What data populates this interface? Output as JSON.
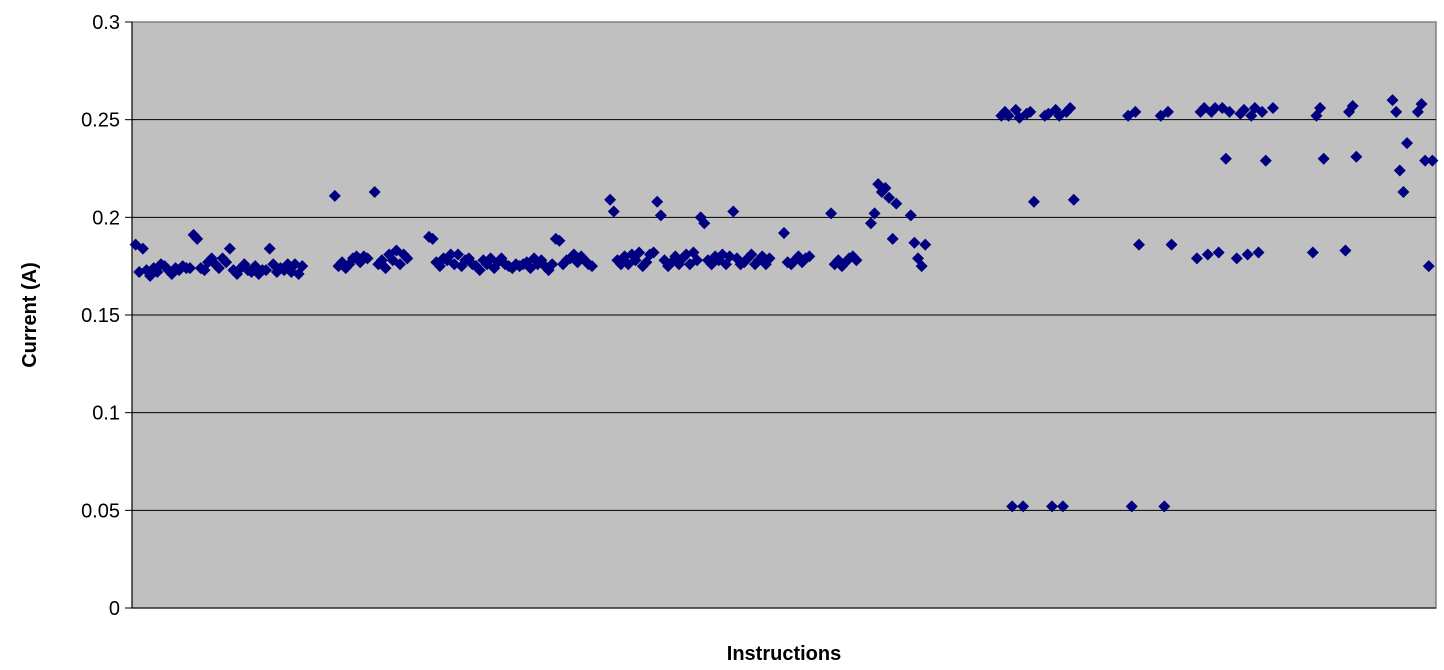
{
  "chart_data": {
    "type": "scatter",
    "title": "",
    "xlabel": "Instructions",
    "ylabel": "Current (A)",
    "ylim": [
      0,
      0.3
    ],
    "xlim": [
      0,
      360
    ],
    "x_ticks_visible": false,
    "y_ticks": [
      "0",
      "0.05",
      "0.1",
      "0.15",
      "0.2",
      "0.25",
      "0.3"
    ],
    "grid": "horizontal",
    "legend": "none",
    "colors": {
      "plot_area": "#c0c0c0",
      "marker": "#000080",
      "gridline": "#000000",
      "page": "#ffffff"
    },
    "marker": "diamond",
    "series": [
      {
        "points": [
          [
            1,
            0.186
          ],
          [
            2,
            0.172
          ],
          [
            3,
            0.184
          ],
          [
            4,
            0.173
          ],
          [
            5,
            0.17
          ],
          [
            6,
            0.174
          ],
          [
            7,
            0.172
          ],
          [
            8,
            0.176
          ],
          [
            9,
            0.175
          ],
          [
            10,
            0.173
          ],
          [
            11,
            0.171
          ],
          [
            12,
            0.174
          ],
          [
            13,
            0.173
          ],
          [
            14,
            0.175
          ],
          [
            15,
            0.174
          ],
          [
            16,
            0.174
          ],
          [
            17,
            0.191
          ],
          [
            18,
            0.189
          ],
          [
            19,
            0.174
          ],
          [
            20,
            0.173
          ],
          [
            21,
            0.177
          ],
          [
            22,
            0.179
          ],
          [
            23,
            0.176
          ],
          [
            24,
            0.174
          ],
          [
            25,
            0.179
          ],
          [
            26,
            0.177
          ],
          [
            27,
            0.184
          ],
          [
            28,
            0.173
          ],
          [
            29,
            0.171
          ],
          [
            30,
            0.174
          ],
          [
            31,
            0.176
          ],
          [
            32,
            0.173
          ],
          [
            33,
            0.172
          ],
          [
            34,
            0.175
          ],
          [
            35,
            0.171
          ],
          [
            36,
            0.173
          ],
          [
            37,
            0.173
          ],
          [
            38,
            0.184
          ],
          [
            39,
            0.176
          ],
          [
            40,
            0.172
          ],
          [
            41,
            0.174
          ],
          [
            42,
            0.173
          ],
          [
            43,
            0.176
          ],
          [
            44,
            0.172
          ],
          [
            45,
            0.176
          ],
          [
            46,
            0.171
          ],
          [
            47,
            0.175
          ],
          [
            56,
            0.211
          ],
          [
            57,
            0.175
          ],
          [
            58,
            0.177
          ],
          [
            59,
            0.174
          ],
          [
            60,
            0.176
          ],
          [
            61,
            0.179
          ],
          [
            62,
            0.18
          ],
          [
            63,
            0.177
          ],
          [
            64,
            0.18
          ],
          [
            65,
            0.179
          ],
          [
            67,
            0.213
          ],
          [
            68,
            0.176
          ],
          [
            69,
            0.178
          ],
          [
            70,
            0.174
          ],
          [
            71,
            0.181
          ],
          [
            72,
            0.178
          ],
          [
            73,
            0.183
          ],
          [
            74,
            0.176
          ],
          [
            75,
            0.181
          ],
          [
            76,
            0.179
          ],
          [
            82,
            0.19
          ],
          [
            83,
            0.189
          ],
          [
            84,
            0.177
          ],
          [
            85,
            0.175
          ],
          [
            86,
            0.179
          ],
          [
            87,
            0.178
          ],
          [
            88,
            0.181
          ],
          [
            89,
            0.176
          ],
          [
            90,
            0.181
          ],
          [
            91,
            0.175
          ],
          [
            92,
            0.178
          ],
          [
            93,
            0.179
          ],
          [
            94,
            0.176
          ],
          [
            95,
            0.175
          ],
          [
            96,
            0.173
          ],
          [
            97,
            0.178
          ],
          [
            98,
            0.176
          ],
          [
            99,
            0.179
          ],
          [
            100,
            0.174
          ],
          [
            101,
            0.177
          ],
          [
            102,
            0.179
          ],
          [
            103,
            0.176
          ],
          [
            104,
            0.175
          ],
          [
            105,
            0.174
          ],
          [
            106,
            0.176
          ],
          [
            107,
            0.175
          ],
          [
            108,
            0.176
          ],
          [
            109,
            0.177
          ],
          [
            110,
            0.174
          ],
          [
            111,
            0.179
          ],
          [
            112,
            0.176
          ],
          [
            113,
            0.178
          ],
          [
            114,
            0.175
          ],
          [
            115,
            0.173
          ],
          [
            116,
            0.176
          ],
          [
            117,
            0.189
          ],
          [
            118,
            0.188
          ],
          [
            119,
            0.176
          ],
          [
            120,
            0.178
          ],
          [
            121,
            0.179
          ],
          [
            122,
            0.181
          ],
          [
            123,
            0.177
          ],
          [
            124,
            0.18
          ],
          [
            125,
            0.178
          ],
          [
            126,
            0.176
          ],
          [
            127,
            0.175
          ],
          [
            132,
            0.209
          ],
          [
            133,
            0.203
          ],
          [
            134,
            0.178
          ],
          [
            135,
            0.176
          ],
          [
            136,
            0.18
          ],
          [
            137,
            0.176
          ],
          [
            138,
            0.181
          ],
          [
            139,
            0.178
          ],
          [
            140,
            0.182
          ],
          [
            141,
            0.175
          ],
          [
            142,
            0.177
          ],
          [
            143,
            0.181
          ],
          [
            144,
            0.182
          ],
          [
            145,
            0.208
          ],
          [
            146,
            0.201
          ],
          [
            147,
            0.178
          ],
          [
            148,
            0.175
          ],
          [
            149,
            0.177
          ],
          [
            150,
            0.18
          ],
          [
            151,
            0.176
          ],
          [
            152,
            0.179
          ],
          [
            153,
            0.181
          ],
          [
            154,
            0.176
          ],
          [
            155,
            0.182
          ],
          [
            156,
            0.178
          ],
          [
            157,
            0.2
          ],
          [
            158,
            0.197
          ],
          [
            159,
            0.178
          ],
          [
            160,
            0.176
          ],
          [
            161,
            0.18
          ],
          [
            162,
            0.178
          ],
          [
            163,
            0.181
          ],
          [
            164,
            0.176
          ],
          [
            165,
            0.18
          ],
          [
            166,
            0.203
          ],
          [
            167,
            0.179
          ],
          [
            168,
            0.176
          ],
          [
            169,
            0.177
          ],
          [
            170,
            0.179
          ],
          [
            171,
            0.181
          ],
          [
            172,
            0.176
          ],
          [
            173,
            0.178
          ],
          [
            174,
            0.18
          ],
          [
            175,
            0.176
          ],
          [
            176,
            0.179
          ],
          [
            180,
            0.192
          ],
          [
            181,
            0.177
          ],
          [
            182,
            0.176
          ],
          [
            183,
            0.178
          ],
          [
            184,
            0.18
          ],
          [
            185,
            0.177
          ],
          [
            186,
            0.179
          ],
          [
            187,
            0.18
          ],
          [
            193,
            0.202
          ],
          [
            194,
            0.176
          ],
          [
            195,
            0.178
          ],
          [
            196,
            0.175
          ],
          [
            197,
            0.177
          ],
          [
            198,
            0.179
          ],
          [
            199,
            0.18
          ],
          [
            200,
            0.178
          ],
          [
            204,
            0.197
          ],
          [
            205,
            0.202
          ],
          [
            206,
            0.217
          ],
          [
            207,
            0.213
          ],
          [
            208,
            0.215
          ],
          [
            209,
            0.21
          ],
          [
            210,
            0.189
          ],
          [
            211,
            0.207
          ],
          [
            215,
            0.201
          ],
          [
            216,
            0.187
          ],
          [
            217,
            0.179
          ],
          [
            218,
            0.175
          ],
          [
            219,
            0.186
          ],
          [
            240,
            0.252
          ],
          [
            241,
            0.254
          ],
          [
            242,
            0.252
          ],
          [
            243,
            0.052
          ],
          [
            244,
            0.255
          ],
          [
            245,
            0.251
          ],
          [
            246,
            0.052
          ],
          [
            247,
            0.253
          ],
          [
            248,
            0.254
          ],
          [
            249,
            0.208
          ],
          [
            252,
            0.252
          ],
          [
            253,
            0.253
          ],
          [
            254,
            0.052
          ],
          [
            255,
            0.255
          ],
          [
            256,
            0.252
          ],
          [
            257,
            0.052
          ],
          [
            258,
            0.254
          ],
          [
            259,
            0.256
          ],
          [
            260,
            0.209
          ],
          [
            275,
            0.252
          ],
          [
            276,
            0.052
          ],
          [
            277,
            0.254
          ],
          [
            278,
            0.186
          ],
          [
            284,
            0.252
          ],
          [
            285,
            0.052
          ],
          [
            286,
            0.254
          ],
          [
            287,
            0.186
          ],
          [
            294,
            0.179
          ],
          [
            295,
            0.254
          ],
          [
            296,
            0.256
          ],
          [
            297,
            0.181
          ],
          [
            298,
            0.254
          ],
          [
            299,
            0.256
          ],
          [
            300,
            0.182
          ],
          [
            301,
            0.256
          ],
          [
            302,
            0.23
          ],
          [
            303,
            0.254
          ],
          [
            305,
            0.179
          ],
          [
            306,
            0.253
          ],
          [
            307,
            0.255
          ],
          [
            308,
            0.181
          ],
          [
            309,
            0.252
          ],
          [
            310,
            0.256
          ],
          [
            311,
            0.182
          ],
          [
            312,
            0.254
          ],
          [
            313,
            0.229
          ],
          [
            315,
            0.256
          ],
          [
            326,
            0.182
          ],
          [
            327,
            0.252
          ],
          [
            328,
            0.256
          ],
          [
            329,
            0.23
          ],
          [
            335,
            0.183
          ],
          [
            336,
            0.254
          ],
          [
            337,
            0.257
          ],
          [
            338,
            0.231
          ],
          [
            348,
            0.26
          ],
          [
            349,
            0.254
          ],
          [
            350,
            0.224
          ],
          [
            351,
            0.213
          ],
          [
            352,
            0.238
          ],
          [
            355,
            0.254
          ],
          [
            356,
            0.258
          ],
          [
            357,
            0.229
          ],
          [
            358,
            0.175
          ],
          [
            359,
            0.229
          ]
        ]
      }
    ]
  }
}
